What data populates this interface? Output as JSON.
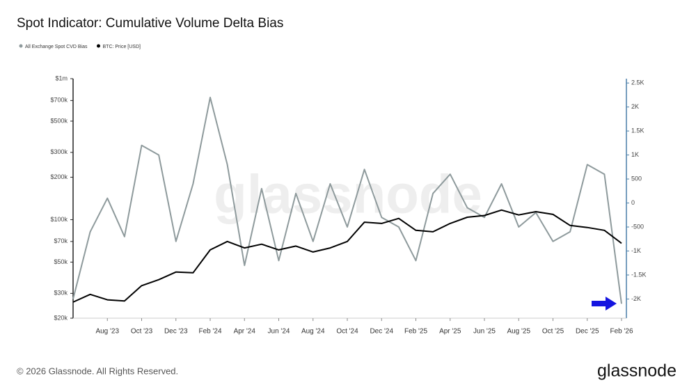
{
  "chart_data": {
    "type": "line",
    "title": "Spot Indicator: Cumulative Volume Delta Bias",
    "watermark": "glassnode",
    "footer": "© 2026 Glassnode. All Rights Reserved.",
    "logo": "glassnode",
    "x": [
      "2023-06",
      "2023-07",
      "2023-08",
      "2023-09",
      "2023-10",
      "2023-11",
      "2023-12",
      "2024-01",
      "2024-02",
      "2024-03",
      "2024-04",
      "2024-05",
      "2024-06",
      "2024-07",
      "2024-08",
      "2024-09",
      "2024-10",
      "2024-11",
      "2024-12",
      "2025-01",
      "2025-02",
      "2025-03",
      "2025-04",
      "2025-05",
      "2025-06",
      "2025-07",
      "2025-08",
      "2025-09",
      "2025-10",
      "2025-11",
      "2025-12",
      "2026-01",
      "2026-02"
    ],
    "xlim": [
      "2023-06",
      "2026-02"
    ],
    "xticks": [
      {
        "value": "2023-08",
        "label": "Aug '23"
      },
      {
        "value": "2023-10",
        "label": "Oct '23"
      },
      {
        "value": "2023-12",
        "label": "Dec '23"
      },
      {
        "value": "2024-02",
        "label": "Feb '24"
      },
      {
        "value": "2024-04",
        "label": "Apr '24"
      },
      {
        "value": "2024-06",
        "label": "Jun '24"
      },
      {
        "value": "2024-08",
        "label": "Aug '24"
      },
      {
        "value": "2024-10",
        "label": "Oct '24"
      },
      {
        "value": "2024-12",
        "label": "Dec '24"
      },
      {
        "value": "2025-02",
        "label": "Feb '25"
      },
      {
        "value": "2025-04",
        "label": "Apr '25"
      },
      {
        "value": "2025-06",
        "label": "Jun '25"
      },
      {
        "value": "2025-08",
        "label": "Aug '25"
      },
      {
        "value": "2025-10",
        "label": "Oct '25"
      },
      {
        "value": "2025-12",
        "label": "Dec '25"
      },
      {
        "value": "2026-02",
        "label": "Feb '26"
      }
    ],
    "ylim": [
      20000,
      1000000
    ],
    "log_scale": true,
    "yticks": [
      {
        "value": 20000,
        "label": "$20k"
      },
      {
        "value": 30000,
        "label": "$30k"
      },
      {
        "value": 50000,
        "label": "$50k"
      },
      {
        "value": 70000,
        "label": "$70k"
      },
      {
        "value": 100000,
        "label": "$100k"
      },
      {
        "value": 200000,
        "label": "$200k"
      },
      {
        "value": 300000,
        "label": "$300k"
      },
      {
        "value": 500000,
        "label": "$500k"
      },
      {
        "value": 700000,
        "label": "$700k"
      },
      {
        "value": 1000000,
        "label": "$1m"
      }
    ],
    "y2lim": [
      -2400,
      2590
    ],
    "y2ticks": [
      {
        "value": -2000,
        "label": "-2K"
      },
      {
        "value": -1500,
        "label": "-1.5K"
      },
      {
        "value": -1000,
        "label": "-1K"
      },
      -500,
      0,
      500,
      {
        "value": 1000,
        "label": "1K"
      },
      {
        "value": 1500,
        "label": "1.5K"
      },
      {
        "value": 2000,
        "label": "2K"
      },
      {
        "value": 2500,
        "label": "2.5K"
      }
    ],
    "series": [
      {
        "name": "All Exchange Spot CVD Bias",
        "color": "#8e9a9c",
        "axis": "y2",
        "values": [
          -2000,
          -600,
          100,
          -700,
          1200,
          1000,
          -800,
          400,
          2200,
          800,
          -1300,
          300,
          -1200,
          200,
          -800,
          400,
          -500,
          700,
          -300,
          -500,
          -1200,
          200,
          600,
          -100,
          -300,
          400,
          -500,
          -200,
          -800,
          -600,
          800,
          600,
          -2100
        ]
      },
      {
        "name": "BTC: Price [USD]",
        "color": "#000000",
        "axis": "y",
        "values": [
          26000,
          29500,
          27000,
          26500,
          34000,
          37500,
          42500,
          42000,
          61000,
          70000,
          63000,
          67000,
          61000,
          65000,
          59000,
          63000,
          70000,
          96000,
          94000,
          102000,
          84000,
          82000,
          94000,
          104000,
          107000,
          117000,
          108000,
          114000,
          109000,
          91000,
          88000,
          84000,
          68000
        ]
      }
    ]
  }
}
